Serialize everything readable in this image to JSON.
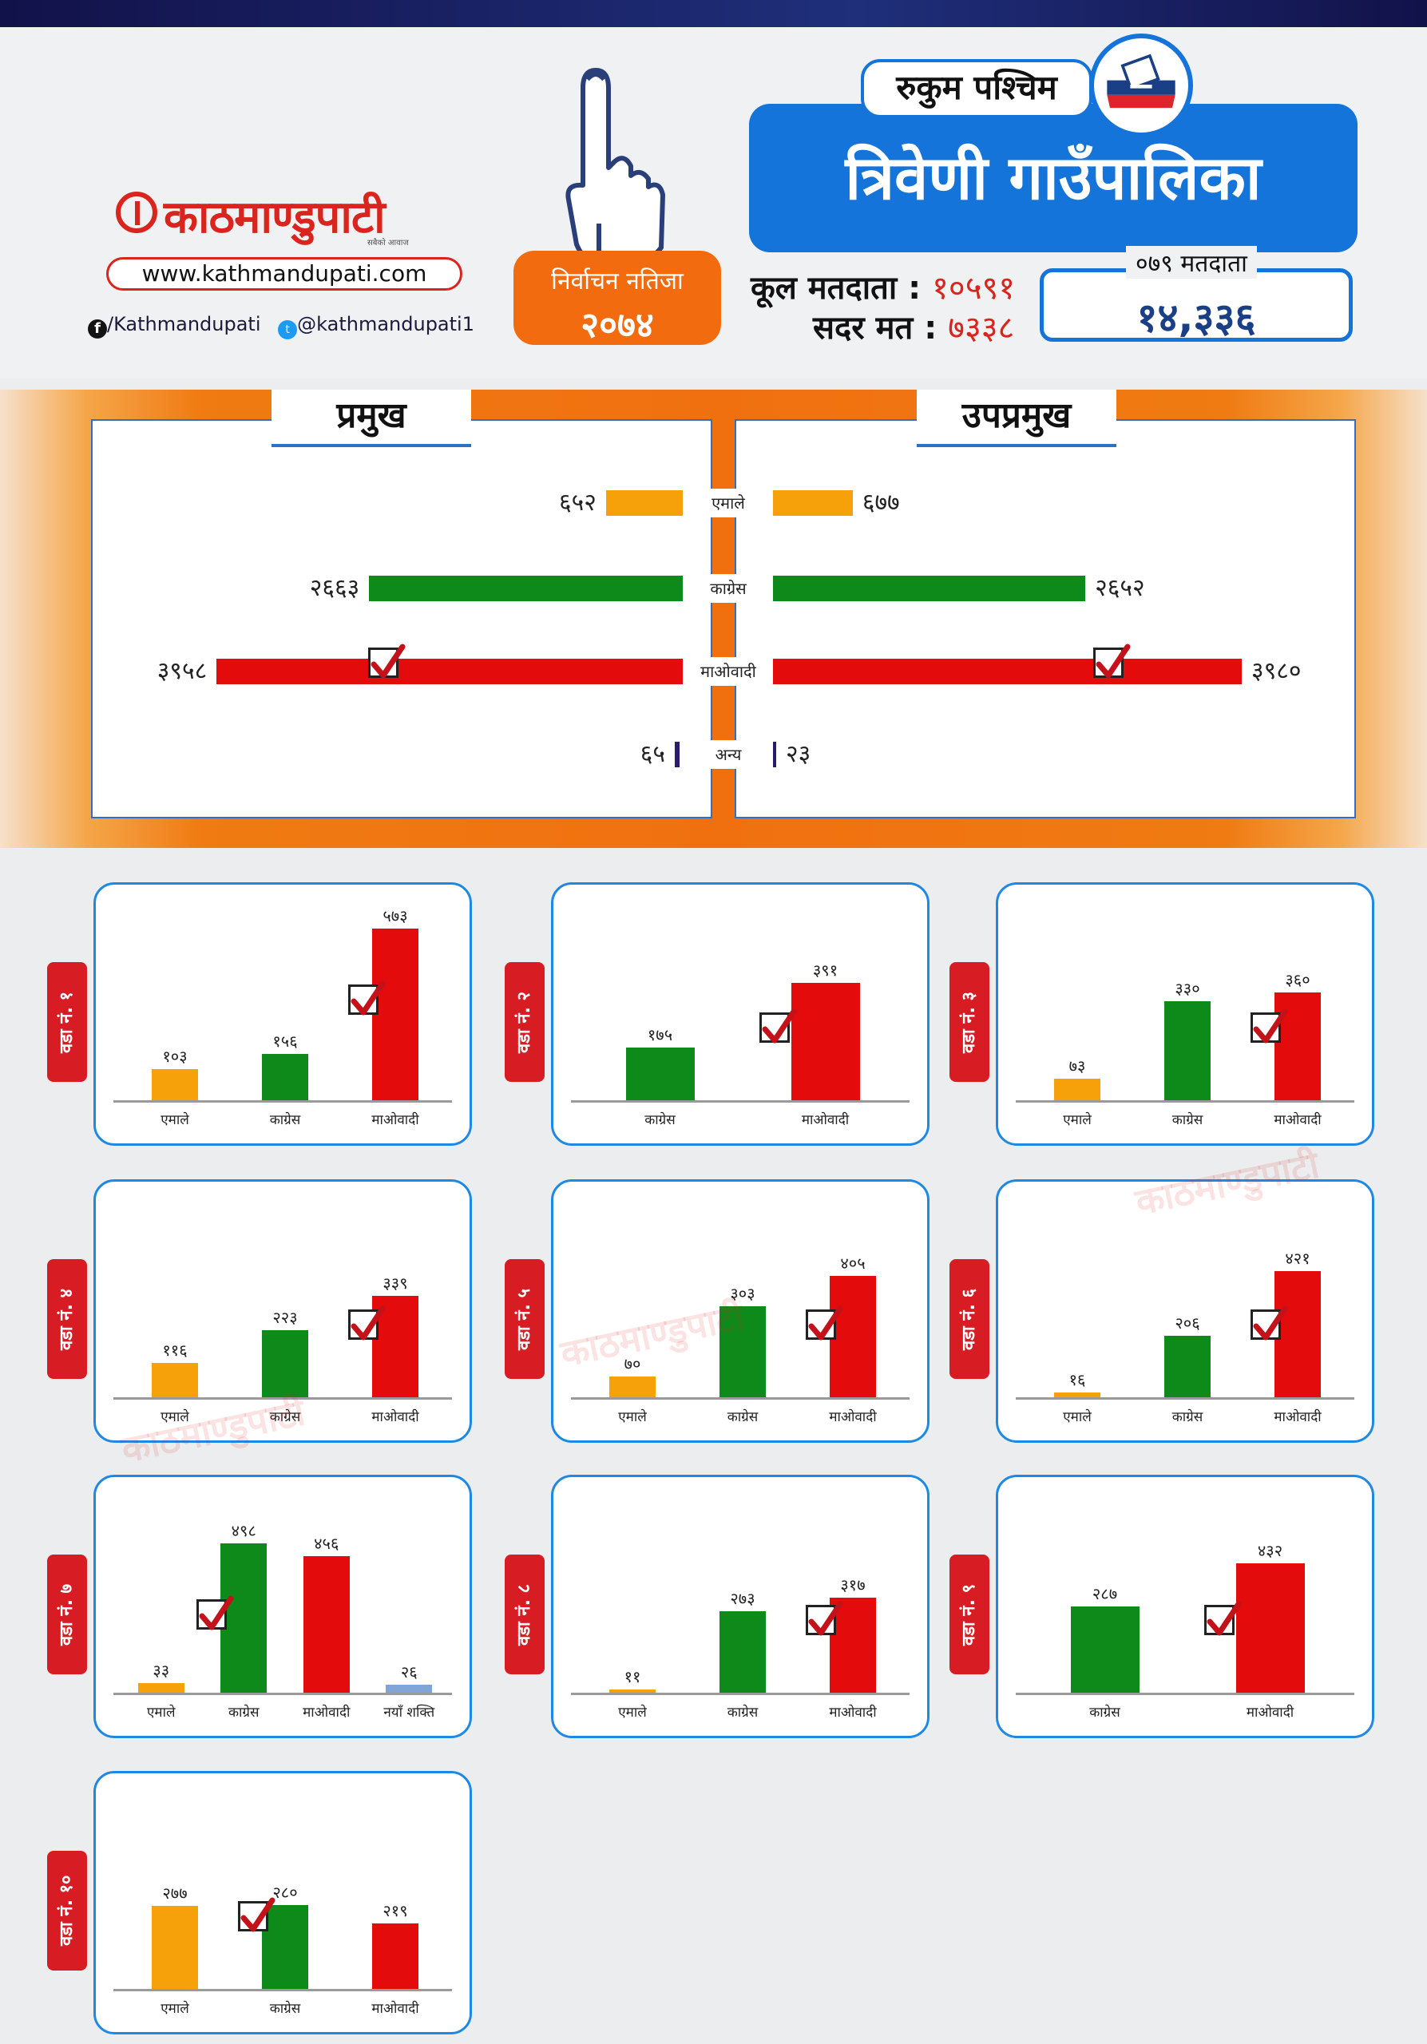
{
  "header": {
    "brand": "काठमाण्डुपाटी",
    "brand_tagline": "सबैको आवाज",
    "website": "www.kathmandupati.com",
    "facebook": "/Kathmandupati",
    "twitter": "@kathmandupati1",
    "result_badge_line1": "निर्वाचन नतिजा",
    "result_badge_line2": "२०७४",
    "district": "रुकुम पश्चिम",
    "municipality": "त्रिवेणी गाउँपालिका",
    "total_voters_label": "कूल मतदाता :",
    "total_voters_value": "१०५९१",
    "valid_votes_label": "सदर मत :",
    "valid_votes_value": "७३३८",
    "voters_079_label": "०७९ मतदाता",
    "voters_079_value": "१४,३३६"
  },
  "colors": {
    "एमाले": "#f7a10a",
    "काग्रेस": "#0e8a1a",
    "माओवादी": "#e30b0b",
    "अन्य": "#2b1a6e",
    "नयाँ शक्ति": "#7fa6d6",
    "accent_blue": "#1474d9",
    "accent_orange": "#f07010",
    "tag_red": "#d81c23"
  },
  "chart_data": [
    {
      "type": "bar",
      "id": "pramukh",
      "title": "प्रमुख",
      "categories": [
        "एमाले",
        "काग्रेस",
        "माओवादी",
        "अन्य"
      ],
      "values": [
        652,
        2663,
        3958,
        65
      ],
      "value_labels": [
        "६५२",
        "२६६३",
        "३९५८",
        "६५"
      ],
      "winner": "माओवादी",
      "orientation": "horizontal"
    },
    {
      "type": "bar",
      "id": "upapramukh",
      "title": "उपप्रमुख",
      "categories": [
        "एमाले",
        "काग्रेस",
        "माओवादी",
        "अन्य"
      ],
      "values": [
        677,
        2652,
        3980,
        23
      ],
      "value_labels": [
        "६७७",
        "२६५२",
        "३९८०",
        "२३"
      ],
      "winner": "माओवादी",
      "orientation": "horizontal"
    },
    {
      "type": "bar",
      "title": "वडा नं. १",
      "categories": [
        "एमाले",
        "काग्रेस",
        "माओवादी"
      ],
      "values": [
        103,
        156,
        573
      ],
      "value_labels": [
        "१०३",
        "१५६",
        "५७३"
      ],
      "winner": "माओवादी"
    },
    {
      "type": "bar",
      "title": "वडा नं. २",
      "categories": [
        "काग्रेस",
        "माओवादी"
      ],
      "values": [
        175,
        391
      ],
      "value_labels": [
        "१७५",
        "३९१"
      ],
      "winner": "माओवादी"
    },
    {
      "type": "bar",
      "title": "वडा नं. ३",
      "categories": [
        "एमाले",
        "काग्रेस",
        "माओवादी"
      ],
      "values": [
        73,
        330,
        360
      ],
      "value_labels": [
        "७३",
        "३३०",
        "३६०"
      ],
      "winner": "माओवादी"
    },
    {
      "type": "bar",
      "title": "वडा नं. ४",
      "categories": [
        "एमाले",
        "काग्रेस",
        "माओवादी"
      ],
      "values": [
        116,
        223,
        339
      ],
      "value_labels": [
        "११६",
        "२२३",
        "३३९"
      ],
      "winner": "माओवादी"
    },
    {
      "type": "bar",
      "title": "वडा नं. ५",
      "categories": [
        "एमाले",
        "काग्रेस",
        "माओवादी"
      ],
      "values": [
        70,
        303,
        405
      ],
      "value_labels": [
        "७०",
        "३०३",
        "४०५"
      ],
      "winner": "माओवादी"
    },
    {
      "type": "bar",
      "title": "वडा नं. ६",
      "categories": [
        "एमाले",
        "काग्रेस",
        "माओवादी"
      ],
      "values": [
        16,
        206,
        421
      ],
      "value_labels": [
        "१६",
        "२०६",
        "४२१"
      ],
      "winner": "माओवादी"
    },
    {
      "type": "bar",
      "title": "वडा नं. ७",
      "categories": [
        "एमाले",
        "काग्रेस",
        "माओवादी",
        "नयाँ शक्ति"
      ],
      "values": [
        33,
        498,
        456,
        26
      ],
      "value_labels": [
        "३३",
        "४९८",
        "४५६",
        "२६"
      ],
      "winner": "काग्रेस"
    },
    {
      "type": "bar",
      "title": "वडा नं. ८",
      "categories": [
        "एमाले",
        "काग्रेस",
        "माओवादी"
      ],
      "values": [
        11,
        273,
        317
      ],
      "value_labels": [
        "११",
        "२७३",
        "३१७"
      ],
      "winner": "माओवादी"
    },
    {
      "type": "bar",
      "title": "वडा नं. ९",
      "categories": [
        "काग्रेस",
        "माओवादी"
      ],
      "values": [
        287,
        432
      ],
      "value_labels": [
        "२८७",
        "४३२"
      ],
      "winner": "माओवादी"
    },
    {
      "type": "bar",
      "title": "वडा नं. १०",
      "categories": [
        "एमाले",
        "काग्रेस",
        "माओवादी"
      ],
      "values": [
        277,
        280,
        219
      ],
      "value_labels": [
        "२७७",
        "२८०",
        "२१९"
      ],
      "winner": "काग्रेस"
    }
  ]
}
